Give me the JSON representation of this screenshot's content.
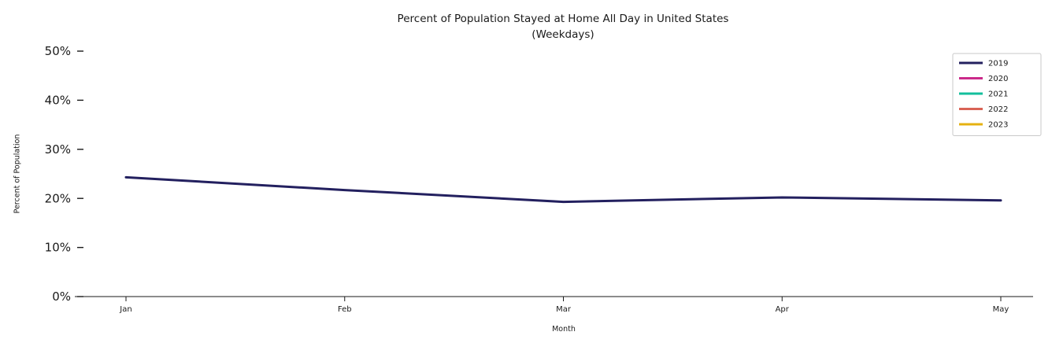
{
  "chart_data": {
    "type": "line",
    "title": "Percent of Population Stayed at Home All Day in United States",
    "subtitle": "(Weekdays)",
    "xlabel": "Month",
    "ylabel": "Percent of Population",
    "categories": [
      "Jan",
      "Feb",
      "Mar",
      "Apr",
      "May"
    ],
    "ylim": [
      0,
      50
    ],
    "ytick_values": [
      0,
      10,
      20,
      30,
      40,
      50
    ],
    "ytick_labels": [
      "0%",
      "10%",
      "20%",
      "30%",
      "40%",
      "50%"
    ],
    "grid": false,
    "legend_position": "upper right",
    "series": [
      {
        "name": "2019",
        "color": "#23205f",
        "values": [
          24.3,
          21.7,
          19.3,
          20.2,
          19.6
        ]
      },
      {
        "name": "2020",
        "color": "#cb2a8a",
        "values": []
      },
      {
        "name": "2021",
        "color": "#13bf9c",
        "values": []
      },
      {
        "name": "2022",
        "color": "#d96356",
        "values": []
      },
      {
        "name": "2023",
        "color": "#e5b111",
        "values": []
      }
    ]
  }
}
